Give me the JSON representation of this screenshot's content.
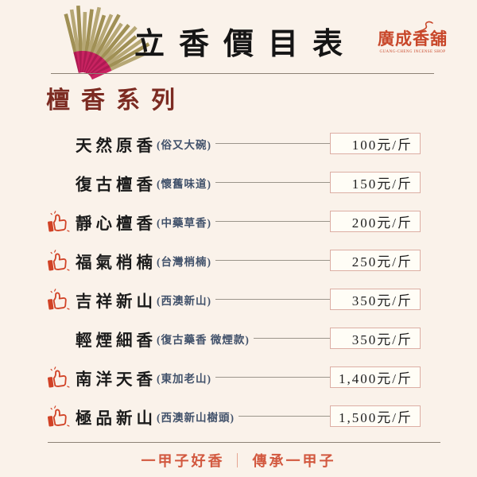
{
  "header": {
    "title": "立香價目表",
    "logo": {
      "name": "廣成香舖",
      "subtext": "GUANG-CHENG INCENSE SHOP"
    }
  },
  "section": {
    "title": "檀香系列"
  },
  "products": [
    {
      "name": "天然原香",
      "note": "(俗又大碗)",
      "price": "100元/斤",
      "recommended": false
    },
    {
      "name": "復古檀香",
      "note": "(懷舊味道)",
      "price": "150元/斤",
      "recommended": false
    },
    {
      "name": "靜心檀香",
      "note": "(中藥草香)",
      "price": "200元/斤",
      "recommended": true
    },
    {
      "name": "福氣梢楠",
      "note": "(台灣梢楠)",
      "price": "250元/斤",
      "recommended": true
    },
    {
      "name": "吉祥新山",
      "note": "(西澳新山)",
      "price": "350元/斤",
      "recommended": true
    },
    {
      "name": "輕煙細香",
      "note": "(復古藥香 微煙款)",
      "price": "350元/斤",
      "recommended": false
    },
    {
      "name": "南洋天香",
      "note": "(東加老山)",
      "price": "1,400元/斤",
      "recommended": true
    },
    {
      "name": "極品新山",
      "note": "(西澳新山樹頭)",
      "price": "1,500元/斤",
      "recommended": true
    }
  ],
  "footer": {
    "tagline_left": "一甲子好香",
    "separator": "｜",
    "tagline_right": "傳承一甲子"
  },
  "icons": {
    "recommended": "thumbs-up-icon",
    "header_image": "incense-fan-icon",
    "logo_decoration": "smoke-swirl-icon"
  },
  "colors": {
    "background": "#faf2ea",
    "accent_red": "#c8472a",
    "section_maroon": "#7c2b22",
    "note_blue": "#42526b",
    "price_box_border": "#dcaea4",
    "footer_red": "#d2583f"
  }
}
